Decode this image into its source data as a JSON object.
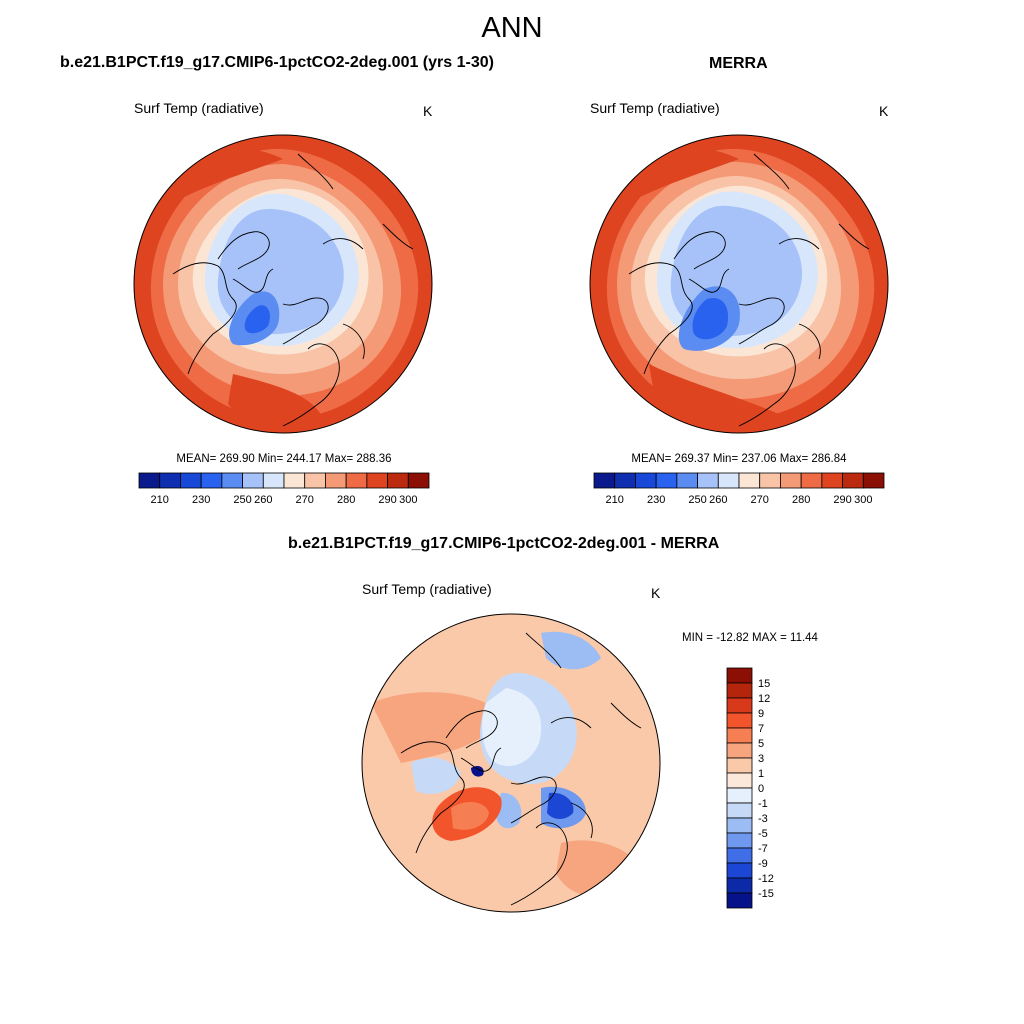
{
  "title": "ANN",
  "panels": [
    {
      "title": "b.e21.B1PCT.f19_g17.CMIP6-1pctCO2-2deg.001 (yrs 1-30)",
      "variable": "Surf Temp (radiative)",
      "units": "K",
      "stats": "MEAN= 269.90  Min= 244.17  Max= 288.36",
      "colorbar_labels": [
        "210",
        "230",
        "250",
        "260",
        "270",
        "280",
        "290",
        "300"
      ]
    },
    {
      "title": "MERRA",
      "variable": "Surf Temp (radiative)",
      "units": "K",
      "stats": "MEAN= 269.37  Min= 237.06  Max= 286.84",
      "colorbar_labels": [
        "210",
        "230",
        "250",
        "260",
        "270",
        "280",
        "290",
        "300"
      ]
    },
    {
      "title": "b.e21.B1PCT.f19_g17.CMIP6-1pctCO2-2deg.001 - MERRA",
      "variable": "Surf Temp (radiative)",
      "units": "K",
      "stats": "MIN = -12.82 MAX =  11.44",
      "colorbar_labels": [
        "15",
        "12",
        "9",
        "7",
        "5",
        "3",
        "1",
        "0",
        "-1",
        "-3",
        "-5",
        "-7",
        "-9",
        "-12",
        "-15"
      ]
    }
  ],
  "colors": {
    "abs_colorbar": [
      "#0a1a8c",
      "#0d2fb0",
      "#1848d8",
      "#2a62f0",
      "#5a8cf2",
      "#a6c2f8",
      "#d8e6fb",
      "#fbe6d6",
      "#f8c3a6",
      "#f49a77",
      "#ee6b45",
      "#de4420",
      "#bb2a0f",
      "#8c0f05"
    ],
    "diff_colorbar": [
      "#8c0f05",
      "#b5250c",
      "#d8391a",
      "#f2552c",
      "#f57e52",
      "#f7a57e",
      "#f9c9aa",
      "#fce8da",
      "#e6f0fc",
      "#c6daf8",
      "#9cbcf4",
      "#6f98ef",
      "#3f6ee6",
      "#1c47d4",
      "#0c2aa8",
      "#06128a"
    ]
  }
}
